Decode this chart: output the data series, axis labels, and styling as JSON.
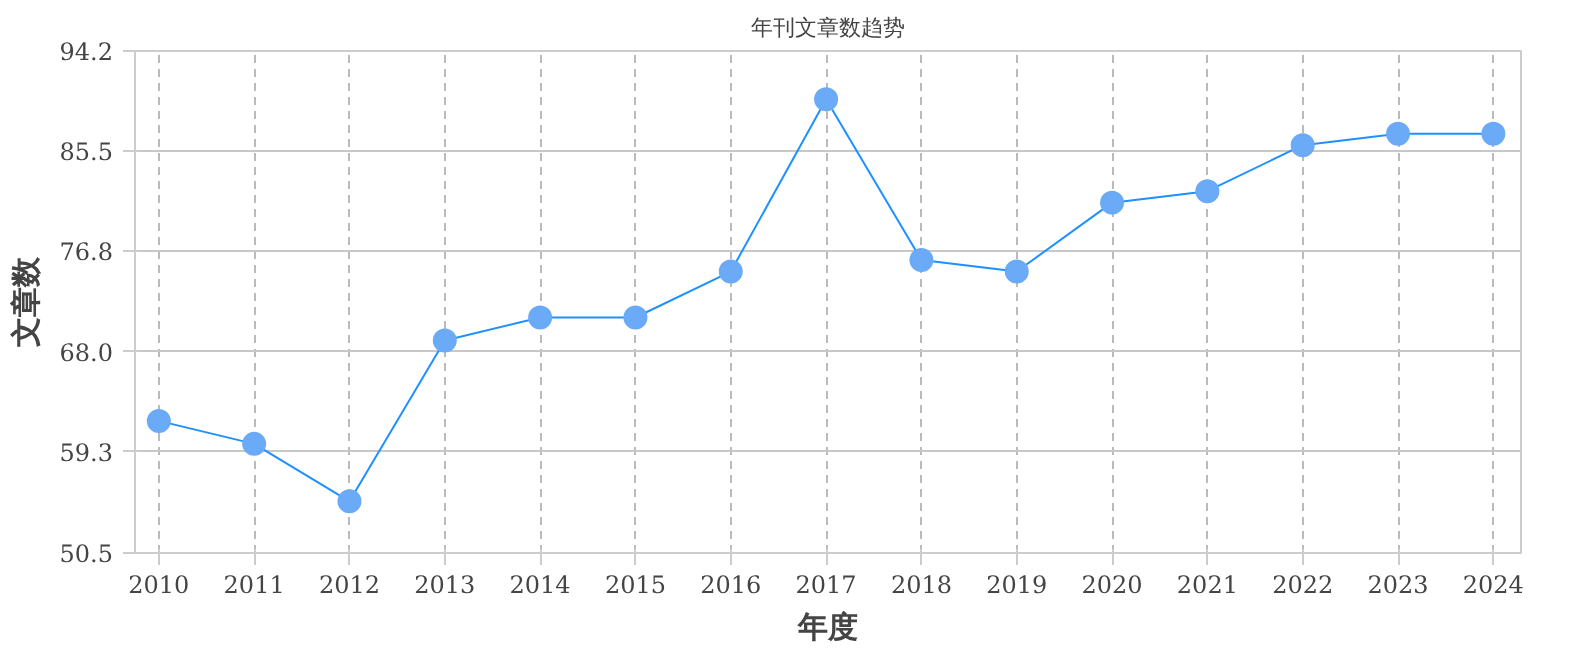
{
  "chart_data": {
    "type": "line",
    "title": "年刊文章数趋势",
    "xlabel": "年度",
    "ylabel": "文章数",
    "categories": [
      "2010",
      "2011",
      "2012",
      "2013",
      "2014",
      "2015",
      "2016",
      "2017",
      "2018",
      "2019",
      "2020",
      "2021",
      "2022",
      "2023",
      "2024"
    ],
    "series": [
      {
        "color": "#1e90ff",
        "values": [
          62,
          60,
          55,
          69,
          71,
          71,
          75,
          90,
          76,
          75,
          81,
          82,
          86,
          87,
          87
        ]
      }
    ],
    "ylim": [
      50.5,
      94.2
    ],
    "yticks": [
      {
        "value": 50.5,
        "label": "50.5"
      },
      {
        "value": 59.3,
        "label": "59.3"
      },
      {
        "value": 68,
        "label": "68.0"
      },
      {
        "value": 76.8,
        "label": "76.8"
      },
      {
        "value": 85.5,
        "label": "85.5"
      },
      {
        "value": 94.2,
        "label": "94.2"
      }
    ],
    "grid": true,
    "marker": "circle",
    "line_style": "solid"
  }
}
